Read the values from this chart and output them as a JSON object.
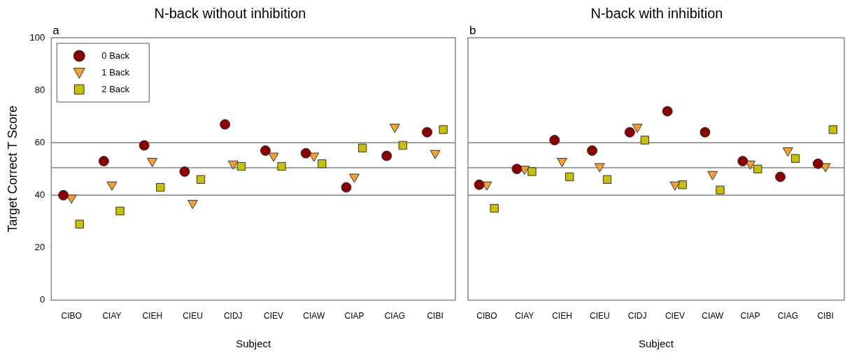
{
  "chart_data": [
    {
      "type": "scatter",
      "title": "N-back without inhibition",
      "xlabel": "Subject",
      "ylabel": "Target Correct T Score",
      "annotations": [
        "a"
      ],
      "categories": [
        "CIBO",
        "CIAY",
        "CIEH",
        "CIEU",
        "CIDJ",
        "CIEV",
        "CIAW",
        "CIAP",
        "CIAG",
        "CIBI"
      ],
      "ylim": [
        0,
        100
      ],
      "yticks": [
        0,
        20,
        40,
        60,
        80,
        100
      ],
      "grid": false,
      "legend": "top left",
      "ref_lines": [
        {
          "axis": "y",
          "value": 40,
          "color": "#808080"
        },
        {
          "axis": "y",
          "value": 50.5,
          "color": "#808080"
        },
        {
          "axis": "y",
          "value": 60,
          "color": "#808080"
        }
      ],
      "series": [
        {
          "name": "0 Back",
          "color": "#8b0000",
          "marker": "circle",
          "values": [
            40,
            53,
            59,
            49,
            67,
            57,
            56,
            43,
            55,
            64
          ]
        },
        {
          "name": "1 Back",
          "color": "#f7a030",
          "marker": "triangle",
          "values": [
            39,
            44,
            53,
            37,
            52,
            55,
            55,
            47,
            66,
            56
          ]
        },
        {
          "name": "2 Back",
          "color": "#c8c000",
          "marker": "square",
          "values": [
            29,
            34,
            43,
            46,
            51,
            51,
            52,
            58,
            59,
            65
          ]
        }
      ]
    },
    {
      "type": "scatter",
      "title": "N-back with inhibition",
      "xlabel": "Subject",
      "annotations": [
        "b"
      ],
      "categories": [
        "CIBO",
        "CIAY",
        "CIEH",
        "CIEU",
        "CIDJ",
        "CIEV",
        "CIAW",
        "CIAP",
        "CIAG",
        "CIBI"
      ],
      "ylim": [
        0,
        100
      ],
      "yticks": [
        0,
        20,
        40,
        60,
        80,
        100
      ],
      "tick_labels": "x",
      "grid": false,
      "ref_lines": [
        {
          "axis": "y",
          "value": 40,
          "color": "#808080"
        },
        {
          "axis": "y",
          "value": 50.5,
          "color": "#808080"
        },
        {
          "axis": "y",
          "value": 60,
          "color": "#808080"
        }
      ],
      "series": [
        {
          "color": "#8b0000",
          "marker": "circle",
          "values": [
            44,
            50,
            61,
            57,
            64,
            72,
            64,
            53,
            47,
            52
          ]
        },
        {
          "color": "#f7a030",
          "marker": "triangle",
          "values": [
            44,
            50,
            53,
            51,
            66,
            44,
            48,
            52,
            57,
            51
          ]
        },
        {
          "color": "#c8c000",
          "marker": "square",
          "values": [
            35,
            49,
            47,
            46,
            61,
            44,
            42,
            50,
            54,
            65
          ]
        }
      ]
    }
  ]
}
